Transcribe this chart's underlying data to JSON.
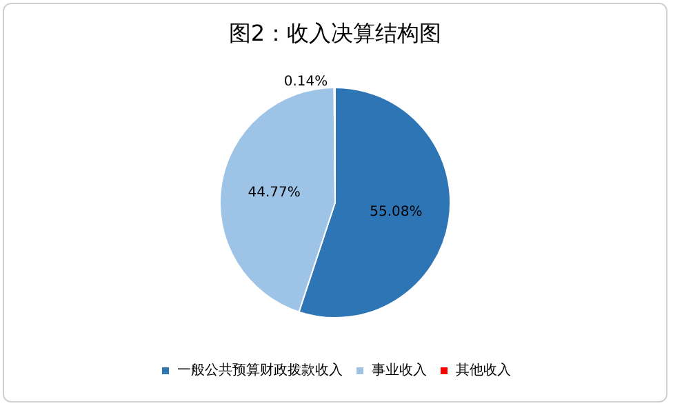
{
  "chart_data": {
    "type": "pie",
    "title": "图2：收入决算结构图",
    "categories": [
      "一般公共预算财政拨款收入",
      "事业收入",
      "其他收入"
    ],
    "values": [
      55.08,
      44.77,
      0.14
    ],
    "colors": [
      "#2e75b6",
      "#9dc3e6",
      "#ff0000"
    ],
    "value_labels": [
      "55.08%",
      "44.77%",
      "0.14%"
    ],
    "legend": "bottom"
  }
}
